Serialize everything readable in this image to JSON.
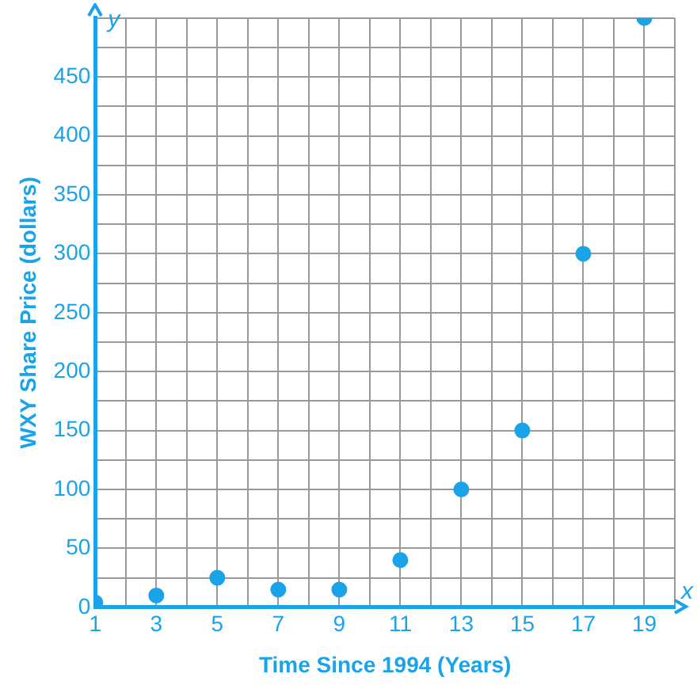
{
  "chart_data": {
    "type": "scatter",
    "xlabel": "Time Since 1994 (Years)",
    "ylabel": "WXY Share Price (dollars)",
    "annotations": [
      "x",
      "y"
    ],
    "x": [
      1,
      3,
      5,
      7,
      9,
      11,
      13,
      15,
      17,
      19
    ],
    "series": [
      {
        "color": "#1aa3e8",
        "values": [
          4,
          10,
          25,
          15,
          15,
          40,
          100,
          150,
          300,
          500
        ]
      }
    ],
    "xlim": [
      1,
      20
    ],
    "ylim": [
      0,
      500
    ],
    "xticks": [
      1,
      {
        "value": 2,
        "label": null
      },
      3,
      {
        "value": 4,
        "label": null
      },
      5,
      {
        "value": 6,
        "label": null
      },
      7,
      {
        "value": 8,
        "label": null
      },
      9,
      {
        "value": 10,
        "label": null
      },
      11,
      {
        "value": 12,
        "label": null
      },
      13,
      {
        "value": 14,
        "label": null
      },
      15,
      {
        "value": 16,
        "label": null
      },
      17,
      {
        "value": 18,
        "label": null
      },
      19,
      {
        "value": 20,
        "label": null
      }
    ],
    "yticks": [
      0,
      {
        "value": 25,
        "label": null
      },
      50,
      {
        "value": 75,
        "label": null
      },
      100,
      {
        "value": 125,
        "label": null
      },
      150,
      {
        "value": 175,
        "label": null
      },
      200,
      {
        "value": 225,
        "label": null
      },
      250,
      {
        "value": 275,
        "label": null
      },
      300,
      {
        "value": 325,
        "label": null
      },
      350,
      {
        "value": 375,
        "label": null
      },
      400,
      {
        "value": 425,
        "label": null
      },
      450,
      {
        "value": 475,
        "label": null
      },
      {
        "value": 500,
        "label": null
      }
    ],
    "grid": true,
    "legend": false,
    "marker": "circle"
  }
}
